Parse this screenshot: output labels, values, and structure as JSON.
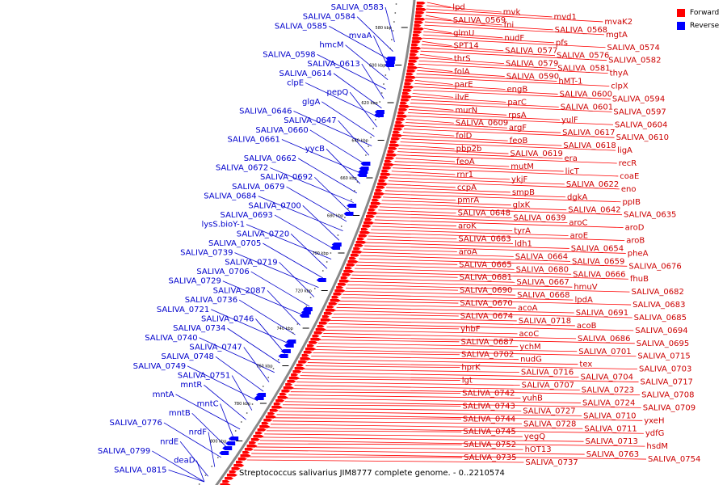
{
  "caption": "Streptococcus salivarius JIM8777 complete genome. - 0..2210574",
  "legend": [
    {
      "label": "Forward",
      "color": "#ff0000"
    },
    {
      "label": "Reverse",
      "color": "#0000ff"
    }
  ],
  "colors": {
    "forward": "#ff0000",
    "reverse": "#0000ff",
    "backbone": "#888888"
  },
  "ticks": [
    "580 kbp",
    "600 kbp",
    "620 kbp",
    "640 kbp",
    "660 kbp",
    "680 kbp",
    "700 kbp",
    "720 kbp",
    "740 kbp",
    "760 kbp",
    "780 kbp",
    "800 kbp"
  ],
  "forward_labels": [
    "lpd",
    "mvk",
    "mvd1",
    "mvaK2",
    "SALIVA_0569",
    "fni",
    "SALIVA_0568",
    "mgtA",
    "glmU",
    "nudF",
    "pfs",
    "SALIVA_0574",
    "SPT14",
    "SALIVA_0577",
    "SALIVA_0576",
    "SALIVA_0582",
    "thrS",
    "SALIVA_0579",
    "SALIVA_0581",
    "thyA",
    "folA",
    "SALIVA_0590",
    "hMT-1",
    "clpX",
    "parE",
    "engB",
    "SALIVA_0600",
    "SALIVA_0594",
    "ilvE",
    "parC",
    "SALIVA_0601",
    "SALIVA_0597",
    "murN",
    "rpsA",
    "yulF",
    "SALIVA_0604",
    "SALIVA_0609",
    "argF",
    "SALIVA_0617",
    "SALIVA_0610",
    "folD",
    "feoB",
    "SALIVA_0618",
    "ligA",
    "pbp2b",
    "SALIVA_0619",
    "era",
    "recR",
    "feoA",
    "mutM",
    "licT",
    "coaE",
    "rnr1",
    "ykjF",
    "SALIVA_0622",
    "eno",
    "ccpA",
    "smpB",
    "dgkA",
    "ppIB",
    "pmrA",
    "glxK",
    "SALIVA_0642",
    "SALIVA_0635",
    "SALIVA_0648",
    "SALIVA_0639",
    "aroC",
    "aroD",
    "aroK",
    "tyrA",
    "aroE",
    "aroB",
    "SALIVA_0663",
    "ldh1",
    "SALIVA_0654",
    "pheA",
    "aroA",
    "SALIVA_0664",
    "SALIVA_0659",
    "SALIVA_0676",
    "SALIVA_0665",
    "SALIVA_0680",
    "SALIVA_0666",
    "fhuB",
    "SALIVA_0681",
    "SALIVA_0667",
    "hmuV",
    "SALIVA_0682",
    "SALIVA_0690",
    "SALIVA_0668",
    "lpdA",
    "SALIVA_0683",
    "SALIVA_0670",
    "acoA",
    "SALIVA_0691",
    "SALIVA_0685",
    "SALIVA_0674",
    "SALIVA_0718",
    "acoB",
    "SALIVA_0694",
    "yhbF",
    "acoC",
    "SALIVA_0686",
    "SALIVA_0695",
    "SALIVA_0687",
    "ychM",
    "SALIVA_0701",
    "SALIVA_0715",
    "SALIVA_0702",
    "nudG",
    "tex",
    "SALIVA_0703",
    "hprK",
    "SALIVA_0716",
    "SALIVA_0704",
    "SALIVA_0717",
    "lgt",
    "SALIVA_0707",
    "SALIVA_0723",
    "SALIVA_0708",
    "SALIVA_0742",
    "yuhB",
    "SALIVA_0724",
    "SALIVA_0709",
    "SALIVA_0743",
    "SALIVA_0727",
    "SALIVA_0710",
    "yxeH",
    "SALIVA_0744",
    "SALIVA_0728",
    "SALIVA_0711",
    "ydfG",
    "SALIVA_0745",
    "yegQ",
    "SALIVA_0713",
    "hsdM",
    "SALIVA_0752",
    "hOT13",
    "SALIVA_0763",
    "SALIVA_0754",
    "SALIVA_0735",
    "SALIVA_0737"
  ],
  "reverse_labels": [
    "SALIVA_0583",
    "SALIVA_0584",
    "SALIVA_0585",
    "mvaA",
    "hmcM",
    "SALIVA_0598",
    "SALIVA_0613",
    "SALIVA_0614",
    "clpE",
    "pepQ",
    "glgA",
    "SALIVA_0646",
    "SALIVA_0647",
    "SALIVA_0660",
    "SALIVA_0661",
    "yycB",
    "SALIVA_0662",
    "SALIVA_0672",
    "SALIVA_0692",
    "SALIVA_0679",
    "SALIVA_0684",
    "SALIVA_0700",
    "SALIVA_0693",
    "lysS.bioY-1",
    "SALIVA_0720",
    "SALIVA_0705",
    "SALIVA_0739",
    "SALIVA_0719",
    "SALIVA_0706",
    "SALIVA_0729",
    "SALIVA_2087",
    "SALIVA_0736",
    "SALIVA_0721",
    "SALIVA_0746",
    "SALIVA_0734",
    "SALIVA_0740",
    "SALIVA_0747",
    "SALIVA_0748",
    "SALIVA_0749",
    "SALIVA_0751",
    "mntR",
    "mntA",
    "mntC",
    "mntB",
    "SALIVA_0776",
    "nrdF",
    "nrdE",
    "SALIVA_0799",
    "deaD",
    "SALIVA_0815"
  ]
}
